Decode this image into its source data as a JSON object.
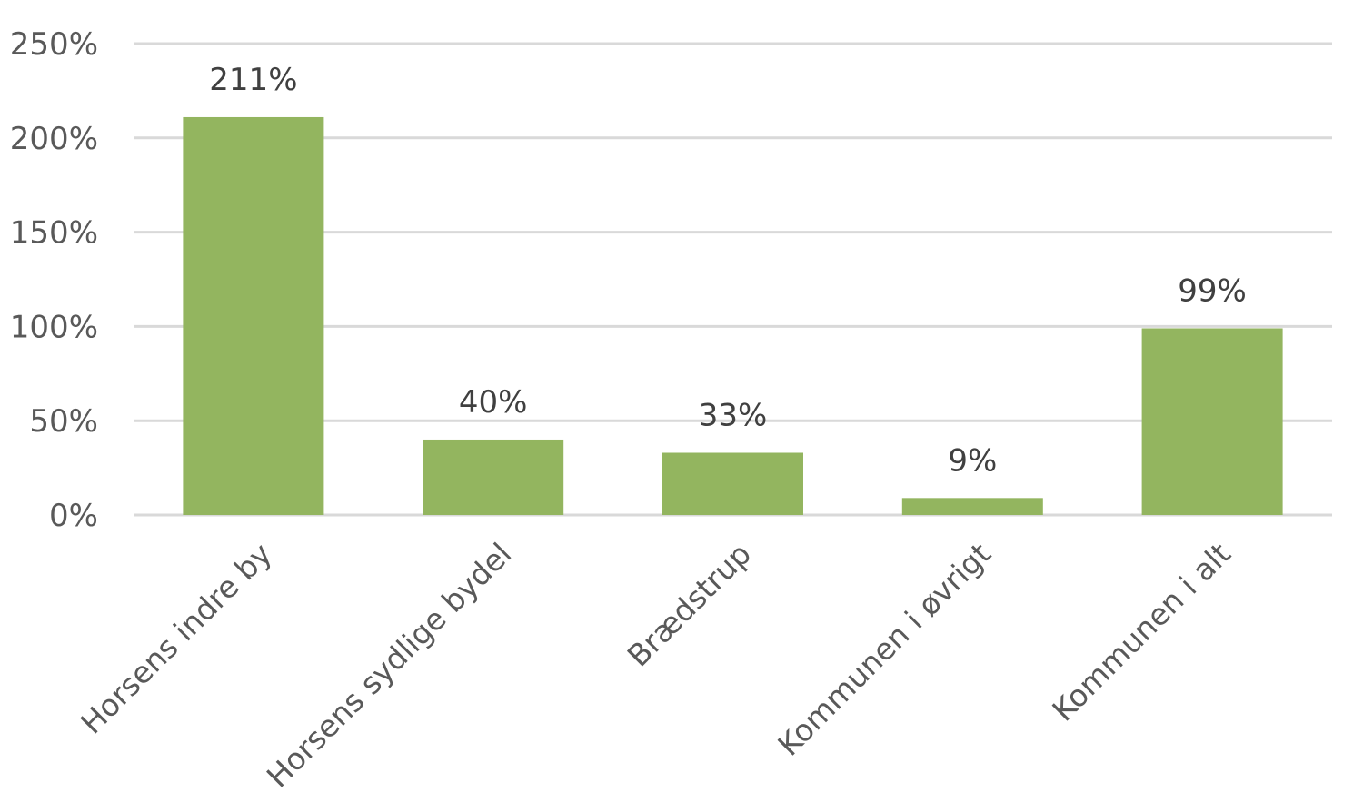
{
  "chart_data": {
    "type": "bar",
    "title": "",
    "xlabel": "",
    "ylabel": "",
    "categories": [
      "Horsens indre by",
      "Horsens sydlige bydel",
      "Brædstrup",
      "Kommunen i øvrigt",
      "Kommunen i alt"
    ],
    "values": [
      211,
      40,
      33,
      9,
      99
    ],
    "data_labels": [
      "211%",
      "40%",
      "33%",
      "9%",
      "99%"
    ],
    "ylim": [
      0,
      250
    ],
    "yticks": [
      0,
      50,
      100,
      150,
      200,
      250
    ],
    "ytick_labels": [
      "0%",
      "50%",
      "100%",
      "150%",
      "200%",
      "250%"
    ],
    "grid": true,
    "legend": "none",
    "bar_color": "#93b55f",
    "grid_color": "#d9d9d9"
  }
}
